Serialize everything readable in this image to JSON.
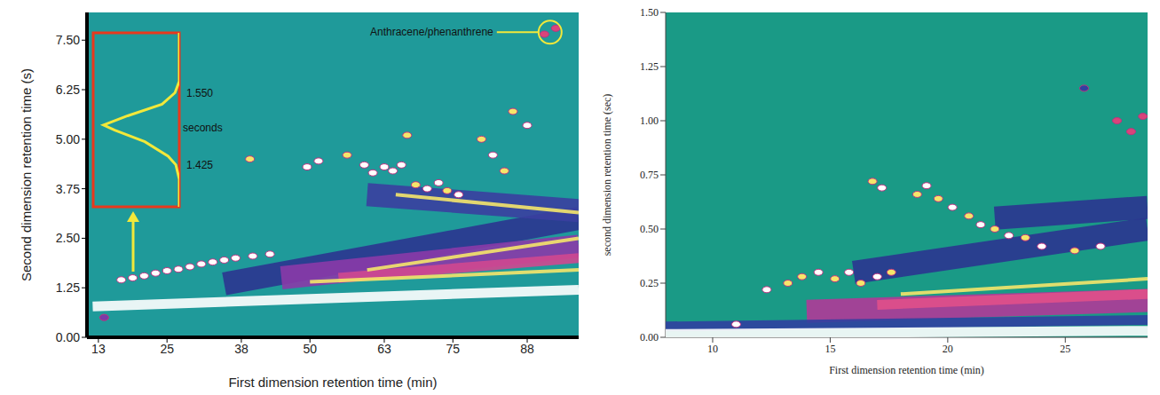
{
  "chart_data": [
    {
      "type": "scatter",
      "x_label": "First dimension retention time (min)",
      "y_label": "Second dimension retention time (s)",
      "xlim": [
        11,
        97
      ],
      "xticks": [
        13,
        25,
        38,
        50,
        63,
        75,
        88
      ],
      "ylim": [
        0,
        8.2
      ],
      "yticks": [
        {
          "value": 0,
          "label": "0.00"
        },
        {
          "value": 1.25,
          "label": "1.25"
        },
        {
          "value": 2.5,
          "label": "2.50"
        },
        {
          "value": 3.75,
          "label": "3.75"
        },
        {
          "value": 5,
          "label": "5.00"
        },
        {
          "value": 6.25,
          "label": "6.25"
        },
        {
          "value": 7.5,
          "label": "7.50"
        }
      ],
      "grid": false,
      "x": [
        14,
        17,
        19,
        21,
        23,
        25,
        27,
        29,
        31,
        33,
        35,
        37,
        40,
        43,
        39.5,
        49.5,
        51.5,
        56.5,
        59.5,
        61,
        63,
        64.5,
        66,
        67,
        68.5,
        70.5,
        72.5,
        74,
        76,
        80,
        82,
        84,
        85.5,
        88,
        91,
        93
      ],
      "values": [
        0.5,
        1.45,
        1.5,
        1.55,
        1.62,
        1.68,
        1.72,
        1.78,
        1.85,
        1.9,
        1.95,
        2.0,
        2.05,
        2.1,
        4.5,
        4.3,
        4.45,
        4.6,
        4.35,
        4.15,
        4.3,
        4.2,
        4.35,
        5.1,
        3.85,
        3.75,
        3.9,
        3.7,
        3.6,
        5.0,
        4.6,
        4.2,
        5.7,
        5.35,
        7.65,
        7.8
      ],
      "colors": [
        "#7a3aa8",
        "#ffffff",
        "#ffffff",
        "#ffffff",
        "#ffffff",
        "#ffffff",
        "#ffffff",
        "#ffffff",
        "#ffffff",
        "#ffffff",
        "#ffffff",
        "#ffffff",
        "#ffffff",
        "#ffffff",
        "#f5e66a",
        "#ffffff",
        "#ffffff",
        "#f5e66a",
        "#ffffff",
        "#ffffff",
        "#ffffff",
        "#ffffff",
        "#ffffff",
        "#f5e66a",
        "#f5e66a",
        "#ffffff",
        "#ffffff",
        "#f5e66a",
        "#ffffff",
        "#f5e66a",
        "#ffffff",
        "#f5e66a",
        "#f5e66a",
        "#ffffff",
        "#d9447a",
        "#d9447a"
      ],
      "series": [
        {
          "type": "line",
          "color": "#2b3590",
          "line_style": "wide",
          "x": [
            35,
            97
          ],
          "values": [
            1.35,
            3.0
          ]
        },
        {
          "type": "line",
          "color": "#3a3fa0",
          "line_style": "wide",
          "x": [
            60,
            97
          ],
          "values": [
            3.6,
            3.2
          ]
        },
        {
          "type": "line",
          "color": "#8a3aa8",
          "line_style": "wide",
          "x": [
            45,
            97
          ],
          "values": [
            1.5,
            2.3
          ]
        },
        {
          "type": "line",
          "color": "#d04890",
          "line_style": "band",
          "x": [
            55,
            97
          ],
          "values": [
            1.5,
            2.0
          ]
        },
        {
          "type": "line",
          "color": "#f5e66a",
          "line_style": "streak",
          "x": [
            50,
            97
          ],
          "values": [
            1.4,
            1.7
          ]
        },
        {
          "type": "line",
          "color": "#f5e66a",
          "line_style": "streak",
          "x": [
            60,
            97
          ],
          "values": [
            1.7,
            2.5
          ]
        },
        {
          "type": "line",
          "color": "#f5e66a",
          "line_style": "streak",
          "x": [
            65,
            97
          ],
          "values": [
            3.6,
            3.15
          ]
        },
        {
          "type": "line",
          "color": "#ffffff",
          "line_style": "band",
          "x": [
            12,
            97
          ],
          "values": [
            0.78,
            1.2
          ]
        }
      ],
      "annotations": [
        {
          "text": "Anthracene/phenanthrene",
          "x": 92,
          "y": 7.7
        }
      ],
      "inset": {
        "type": "line",
        "color": "#f2e83a",
        "y_label": "seconds",
        "xlim": [
          0,
          1
        ],
        "ylim": [
          1.352,
          1.654
        ],
        "yticks": [
          {
            "value": 1.55,
            "label": "1.550"
          },
          {
            "value": 1.425,
            "label": "1.425"
          }
        ],
        "x": [
          0,
          0,
          0.05,
          0.2,
          0.6,
          0.88,
          0.75,
          0.4,
          0.13,
          0.04,
          0,
          0
        ],
        "values": [
          1.654,
          1.57,
          1.55,
          1.53,
          1.51,
          1.494,
          1.485,
          1.465,
          1.44,
          1.425,
          1.4,
          1.352
        ]
      }
    },
    {
      "type": "scatter",
      "x_label": "First dimension retention time (min)",
      "y_label": "second dimension retention time (sec)",
      "xlim": [
        8,
        28.5
      ],
      "xticks": [
        10,
        15,
        20,
        25
      ],
      "ylim": [
        0,
        1.5
      ],
      "yticks": [
        {
          "value": 0,
          "label": "0.00"
        },
        {
          "value": 0.25,
          "label": "0.25"
        },
        {
          "value": 0.5,
          "label": "0.50"
        },
        {
          "value": 0.75,
          "label": "0.75"
        },
        {
          "value": 1,
          "label": "1.00"
        },
        {
          "value": 1.25,
          "label": "1.25"
        },
        {
          "value": 1.5,
          "label": "1.50"
        }
      ],
      "grid": false,
      "x": [
        11,
        12.3,
        13.2,
        13.8,
        14.5,
        15.2,
        15.8,
        16.3,
        17,
        17.6,
        16.8,
        17.2,
        18.7,
        19.1,
        19.6,
        20.2,
        20.9,
        21.4,
        22,
        22.6,
        23.3,
        24,
        25.4,
        26.5,
        25.8,
        27.2,
        27.8,
        28.3
      ],
      "values": [
        0.06,
        0.22,
        0.25,
        0.28,
        0.3,
        0.27,
        0.3,
        0.25,
        0.28,
        0.3,
        0.72,
        0.69,
        0.66,
        0.7,
        0.64,
        0.6,
        0.56,
        0.52,
        0.5,
        0.47,
        0.46,
        0.42,
        0.4,
        0.42,
        1.15,
        1.0,
        0.95,
        1.02
      ],
      "colors": [
        "#ffffff",
        "#ffffff",
        "#f5e66a",
        "#f5e66a",
        "#ffffff",
        "#f5e66a",
        "#ffffff",
        "#f5e66a",
        "#ffffff",
        "#f5e66a",
        "#f5e66a",
        "#ffffff",
        "#f5e66a",
        "#ffffff",
        "#f5e66a",
        "#ffffff",
        "#f5e66a",
        "#ffffff",
        "#f5e66a",
        "#ffffff",
        "#f5e66a",
        "#ffffff",
        "#f5e66a",
        "#ffffff",
        "#3040a0",
        "#d9447a",
        "#d9447a",
        "#d9447a"
      ],
      "series": [
        {
          "type": "line",
          "color": "#2b3590",
          "line_style": "wide",
          "x": [
            16,
            28.5
          ],
          "values": [
            0.3,
            0.5
          ]
        },
        {
          "type": "line",
          "color": "#2b3590",
          "line_style": "wide",
          "x": [
            22,
            28.5
          ],
          "values": [
            0.55,
            0.6
          ]
        },
        {
          "type": "line",
          "color": "#b03a98",
          "line_style": "wide",
          "x": [
            14,
            28.5
          ],
          "values": [
            0.12,
            0.17
          ]
        },
        {
          "type": "line",
          "color": "#e0508a",
          "line_style": "band",
          "x": [
            17,
            28.5
          ],
          "values": [
            0.15,
            0.2
          ]
        },
        {
          "type": "line",
          "color": "#f5e66a",
          "line_style": "streak",
          "x": [
            18,
            28.5
          ],
          "values": [
            0.2,
            0.27
          ]
        },
        {
          "type": "line",
          "color": "#3040a0",
          "line_style": "band",
          "x": [
            8,
            28.5
          ],
          "values": [
            0.05,
            0.08
          ]
        },
        {
          "type": "line",
          "color": "#ffffff",
          "line_style": "band",
          "x": [
            8,
            28.5
          ],
          "values": [
            0.015,
            0.03
          ]
        }
      ]
    }
  ]
}
